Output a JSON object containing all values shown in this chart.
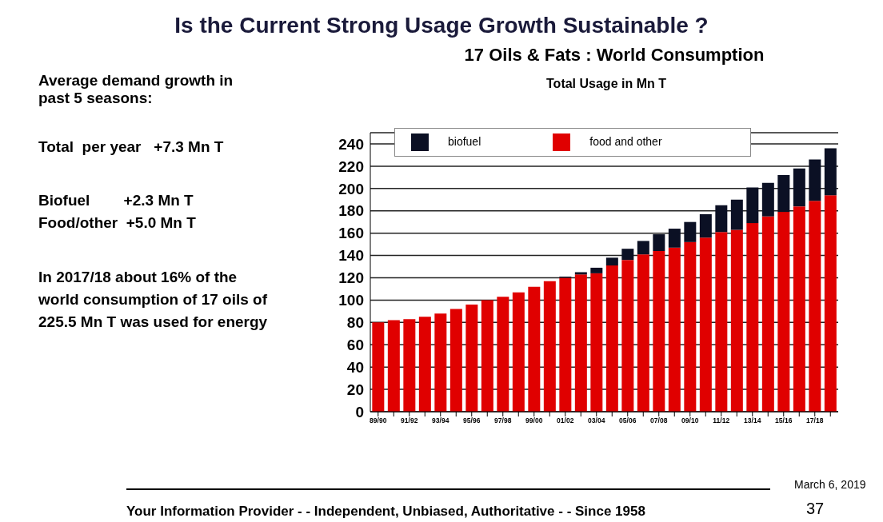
{
  "chart_data": {
    "type": "bar",
    "title": "Is the Current Strong Usage Growth Sustainable ?",
    "subtitle": "17 Oils & Fats :  World Consumption",
    "ylabel": "Total Usage in Mn T",
    "categories": [
      "89/90",
      null,
      "91/92",
      null,
      "93/94",
      null,
      "95/96",
      null,
      "97/98",
      null,
      "99/00",
      null,
      "01/02",
      null,
      "03/04",
      null,
      "05/06",
      null,
      "07/08",
      null,
      "09/10",
      null,
      "11/12",
      null,
      "13/14",
      null,
      "15/16",
      null,
      "17/18",
      null
    ],
    "series": [
      {
        "name": "food and other",
        "color": "#e00000",
        "values": [
          80,
          82,
          83,
          85,
          88,
          92,
          96,
          100,
          103,
          107,
          112,
          117,
          120,
          123,
          124,
          131,
          136,
          141,
          144,
          147,
          152,
          156,
          161,
          163,
          169,
          175,
          179,
          184,
          189,
          194
        ]
      },
      {
        "name": "biofuel",
        "color": "#0b1024",
        "values": [
          0,
          0,
          0,
          0,
          0,
          0,
          0,
          0,
          0,
          0,
          0,
          0,
          1,
          2,
          5,
          7,
          10,
          12,
          15,
          17,
          18,
          21,
          24,
          27,
          32,
          30,
          33,
          34,
          37,
          42
        ]
      }
    ],
    "stacked": true,
    "ylim": [
      0,
      250
    ],
    "yticks": [
      0,
      20,
      40,
      60,
      80,
      100,
      120,
      140,
      160,
      180,
      200,
      220,
      240
    ],
    "grid": "y",
    "legend": "top left",
    "annotations": [
      "Average demand growth in past 5 seasons:",
      "Total  per year   +7.3 Mn T",
      "Biofuel        +2.3 Mn T",
      "Food/other  +5.0 Mn T",
      "In 2017/18 about 16% of the world consumption of 17 oils of 225.5 Mn T was used for energy",
      "Your Information Provider - - Independent, Unbiased, Authoritative - - Since 1958",
      "March 6, 2019",
      "37"
    ]
  }
}
